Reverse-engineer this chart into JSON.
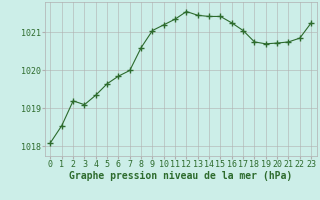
{
  "x": [
    0,
    1,
    2,
    3,
    4,
    5,
    6,
    7,
    8,
    9,
    10,
    11,
    12,
    13,
    14,
    15,
    16,
    17,
    18,
    19,
    20,
    21,
    22,
    23
  ],
  "y": [
    1018.1,
    1018.55,
    1019.2,
    1019.1,
    1019.35,
    1019.65,
    1019.85,
    1020.0,
    1020.6,
    1021.05,
    1021.2,
    1021.35,
    1021.55,
    1021.45,
    1021.42,
    1021.42,
    1021.25,
    1021.05,
    1020.75,
    1020.7,
    1020.72,
    1020.75,
    1020.85,
    1021.25
  ],
  "line_color": "#2d6b2d",
  "marker_color": "#2d6b2d",
  "bg_color": "#cceee8",
  "grid_color": "#b0b0b0",
  "xlabel": "Graphe pression niveau de la mer (hPa)",
  "ylim": [
    1017.75,
    1021.8
  ],
  "yticks": [
    1018,
    1019,
    1020,
    1021
  ],
  "xticks": [
    0,
    1,
    2,
    3,
    4,
    5,
    6,
    7,
    8,
    9,
    10,
    11,
    12,
    13,
    14,
    15,
    16,
    17,
    18,
    19,
    20,
    21,
    22,
    23
  ],
  "xlabel_fontsize": 7.0,
  "tick_fontsize": 6.0,
  "xlabel_color": "#2d6b2d",
  "tick_color": "#2d6b2d",
  "marker_size": 4,
  "line_width": 0.8
}
